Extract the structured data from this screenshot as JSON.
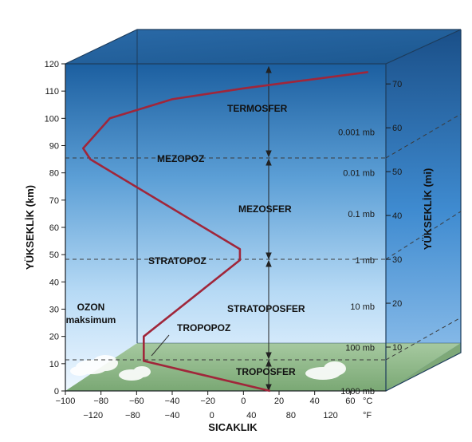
{
  "diagram": {
    "y_axis_left_title": "YÜKSEKLİK (km)",
    "y_axis_right_title": "YÜKSEKLİK (mi)",
    "x_axis_title": "SICAKLIK",
    "unit_celsius": "°C",
    "unit_fahrenheit": "°F",
    "km_ticks": [
      "0",
      "10",
      "20",
      "30",
      "40",
      "50",
      "60",
      "70",
      "80",
      "90",
      "100",
      "110",
      "120"
    ],
    "mi_ticks": [
      "10",
      "20",
      "30",
      "40",
      "50",
      "60",
      "70"
    ],
    "celsius_ticks": [
      "-100",
      "-80",
      "-60",
      "-40",
      "-20",
      "0",
      "20",
      "40",
      "60"
    ],
    "fahrenheit_ticks": [
      "-120",
      "-80",
      "-40",
      "0",
      "40",
      "80",
      "120"
    ],
    "pressure_labels": [
      "1000 mb",
      "100 mb",
      "10 mb",
      "1 mb",
      "0.1 mb",
      "0.01 mb",
      "0.001 mb"
    ],
    "layers": {
      "thermosphere": "TERMOSFER",
      "mesopause": "MEZOPOZ",
      "mesosphere": "MEZOSFER",
      "stratopause": "STRATOPOZ",
      "stratosphere": "STRATOPOSFER",
      "tropopause": "TROPOPOZ",
      "troposphere": "TROPOSFER"
    },
    "ozone_label": "OZON",
    "ozone_sublabel": "maksimum",
    "temperature_profile": [
      {
        "temp_c": 15,
        "alt_km": 0
      },
      {
        "temp_c": -56,
        "alt_km": 11
      },
      {
        "temp_c": -56,
        "alt_km": 20
      },
      {
        "temp_c": -2,
        "alt_km": 48
      },
      {
        "temp_c": -2,
        "alt_km": 52
      },
      {
        "temp_c": -86,
        "alt_km": 85
      },
      {
        "temp_c": -90,
        "alt_km": 89
      },
      {
        "temp_c": -75,
        "alt_km": 100
      },
      {
        "temp_c": -40,
        "alt_km": 107
      },
      {
        "temp_c": 0,
        "alt_km": 111
      },
      {
        "temp_c": 70,
        "alt_km": 117
      }
    ],
    "colors": {
      "sky_top": "#1c5fa0",
      "sky_bottom": "#e6f3ff",
      "ground": "#8fba8a",
      "curve": "#a0263a",
      "cube_edge": "#1d3c5c"
    }
  }
}
